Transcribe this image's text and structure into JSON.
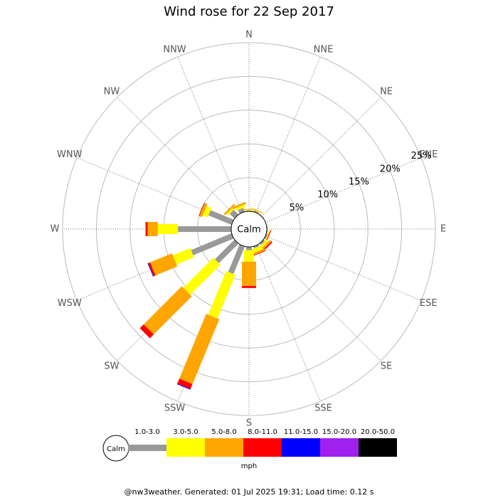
{
  "chart_data": {
    "type": "windrose",
    "title": "Wind rose for 22 Sep 2017",
    "center_label": "Calm",
    "directions": [
      "N",
      "NNE",
      "NE",
      "ENE",
      "E",
      "ESE",
      "SE",
      "SSE",
      "S",
      "SSW",
      "SW",
      "WSW",
      "W",
      "WNW",
      "NW",
      "NNW"
    ],
    "rlim": [
      0,
      25
    ],
    "rticks": [
      {
        "value": 5,
        "label": "5%"
      },
      {
        "value": 10,
        "label": "10%"
      },
      {
        "value": 15,
        "label": "15%"
      },
      {
        "value": 20,
        "label": "20%"
      },
      {
        "value": 25,
        "label": "25%"
      }
    ],
    "series": [
      {
        "name": "1.0-3.0",
        "color": "#999999",
        "values": [
          0.1,
          0.2,
          0.1,
          0,
          0.1,
          0.2,
          0.3,
          0.3,
          0.5,
          4.4,
          4.1,
          6.5,
          7.9,
          3.7,
          1.0,
          0.6
        ]
      },
      {
        "name": "3.0-5.0",
        "color": "#ffff00",
        "values": [
          0.1,
          0.1,
          0,
          0,
          0.1,
          0.1,
          0.4,
          0.6,
          1.7,
          7.0,
          6.3,
          2.8,
          3.0,
          0.8,
          0.3,
          0.4
        ]
      },
      {
        "name": "5.0-8.0",
        "color": "#ffa500",
        "values": [
          0.1,
          0.1,
          0,
          0,
          0,
          0.1,
          0.3,
          0.3,
          3.6,
          10.4,
          8.0,
          3.5,
          1.5,
          0.4,
          0.3,
          0.3
        ]
      },
      {
        "name": "8.0-11.0",
        "color": "#ff0000",
        "values": [
          0,
          0,
          0,
          0,
          0,
          0.1,
          0.2,
          0.1,
          0.3,
          0.8,
          0.8,
          0.3,
          0.3,
          0.1,
          0,
          0
        ]
      },
      {
        "name": "11.0-15.0",
        "color": "#0000ff",
        "values": [
          0,
          0,
          0,
          0,
          0,
          0,
          0,
          0,
          0,
          0.1,
          0,
          0.1,
          0,
          0,
          0,
          0
        ]
      },
      {
        "name": "15.0-20.0",
        "color": "#a020f0",
        "values": [
          0,
          0,
          0,
          0,
          0,
          0,
          0,
          0,
          0,
          0,
          0,
          0,
          0,
          0,
          0,
          0
        ]
      },
      {
        "name": "20.0-50.0",
        "color": "#000000",
        "values": [
          0,
          0,
          0,
          0,
          0,
          0,
          0,
          0,
          0,
          0,
          0,
          0,
          0,
          0,
          0,
          0
        ]
      }
    ],
    "unit": "mph",
    "footer": "@nw3weather. Generated: 01 Jul 2025 19:31; Load time: 0.12 s"
  }
}
